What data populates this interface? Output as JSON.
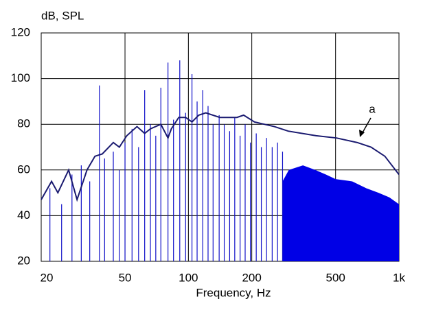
{
  "chart_data": {
    "type": "line",
    "ylabel": "dB, SPL",
    "xlabel": "Frequency, Hz",
    "annotation": "a",
    "xscale": "log",
    "xlim": [
      20,
      1000
    ],
    "xticks": [
      20,
      50,
      100,
      200,
      500,
      {
        "value": 1000,
        "label": "1k"
      }
    ],
    "ylim": [
      20,
      120
    ],
    "yticks": [
      20,
      40,
      60,
      80,
      100,
      120
    ],
    "grid": true,
    "series": [
      {
        "kind": "area",
        "color": "#0000e6",
        "x": [
          280,
          300,
          350,
          400,
          450,
          500,
          600,
          700,
          800,
          900,
          1000
        ],
        "values": [
          55,
          60,
          62,
          60,
          58,
          56,
          55,
          52,
          50,
          48,
          45
        ]
      },
      {
        "kind": "stem",
        "color": "#1010c8",
        "x": [
          22,
          25,
          28,
          31,
          34,
          37.8,
          40,
          44,
          47,
          50,
          54,
          58,
          62,
          66,
          70,
          74,
          80,
          85,
          91,
          97,
          104,
          110,
          117,
          124,
          131,
          140,
          148,
          157,
          166,
          176,
          186,
          197,
          210,
          222,
          235,
          250,
          265,
          280
        ],
        "values": [
          52,
          45,
          58,
          62,
          55,
          97,
          65,
          68,
          60,
          72,
          78,
          70,
          95,
          80,
          75,
          96,
          107,
          82,
          108,
          85,
          102,
          90,
          95,
          88,
          80,
          84,
          80,
          77,
          83,
          75,
          80,
          72,
          76,
          70,
          74,
          70,
          72,
          68
        ]
      },
      {
        "kind": "line",
        "color": "#1a1a70",
        "x": [
          20,
          22.4,
          24,
          27,
          29.6,
          33,
          36,
          39,
          44,
          47,
          51,
          57,
          62,
          66,
          74,
          80,
          83,
          90,
          97,
          104,
          112,
          121,
          141,
          170,
          183,
          206,
          256,
          298,
          404,
          505,
          634,
          737,
          857,
          1000
        ],
        "values": [
          47,
          55,
          50,
          60,
          47,
          60,
          66,
          67,
          72,
          70,
          75,
          79,
          76,
          78,
          80,
          74,
          78,
          83,
          83,
          81,
          84,
          85,
          83,
          83,
          84,
          81,
          79,
          77,
          75,
          74,
          72,
          70,
          66,
          58
        ]
      }
    ]
  }
}
